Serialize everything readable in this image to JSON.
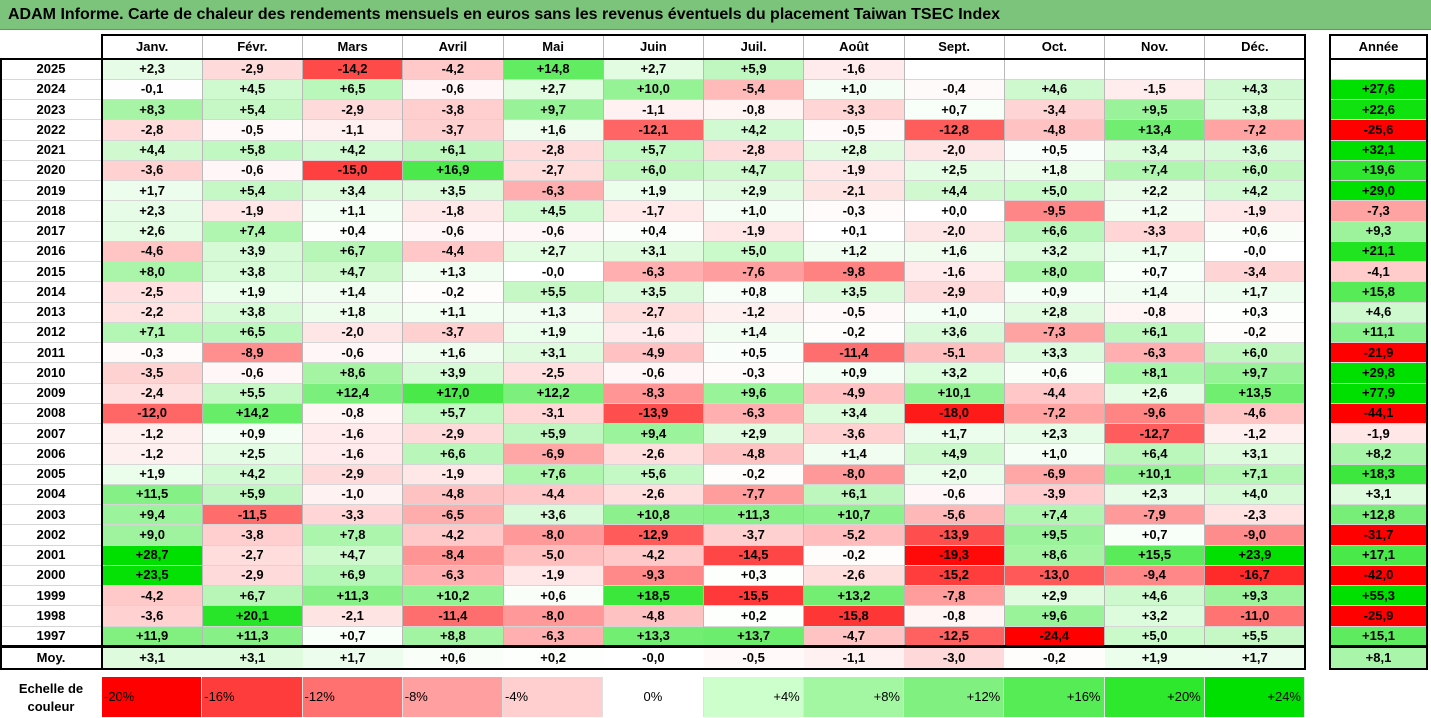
{
  "title": "ADAM Informe. Carte de chaleur des rendements mensuels en euros sans les revenus éventuels du placement Taiwan TSEC Index",
  "chart_data": {
    "type": "heatmap",
    "months": [
      "Janv.",
      "Févr.",
      "Mars",
      "Avril",
      "Mai",
      "Juin",
      "Juil.",
      "Août",
      "Sept.",
      "Oct.",
      "Nov.",
      "Déc."
    ],
    "annual_header": "Année",
    "rows": [
      {
        "year": "2025",
        "values": [
          "+2,3",
          "-2,9",
          "-14,2",
          "-4,2",
          "+14,8",
          "+2,7",
          "+5,9",
          "-1,6",
          "",
          "",
          "",
          ""
        ],
        "annual": ""
      },
      {
        "year": "2024",
        "values": [
          "-0,1",
          "+4,5",
          "+6,5",
          "-0,6",
          "+2,7",
          "+10,0",
          "-5,4",
          "+1,0",
          "-0,4",
          "+4,6",
          "-1,5",
          "+4,3"
        ],
        "annual": "+27,6"
      },
      {
        "year": "2023",
        "values": [
          "+8,3",
          "+5,4",
          "-2,9",
          "-3,8",
          "+9,7",
          "-1,1",
          "-0,8",
          "-3,3",
          "+0,7",
          "-3,4",
          "+9,5",
          "+3,8"
        ],
        "annual": "+22,6"
      },
      {
        "year": "2022",
        "values": [
          "-2,8",
          "-0,5",
          "-1,1",
          "-3,7",
          "+1,6",
          "-12,1",
          "+4,2",
          "-0,5",
          "-12,8",
          "-4,8",
          "+13,4",
          "-7,2"
        ],
        "annual": "-25,6"
      },
      {
        "year": "2021",
        "values": [
          "+4,4",
          "+5,8",
          "+4,2",
          "+6,1",
          "-2,8",
          "+5,7",
          "-2,8",
          "+2,8",
          "-2,0",
          "+0,5",
          "+3,4",
          "+3,6"
        ],
        "annual": "+32,1"
      },
      {
        "year": "2020",
        "values": [
          "-3,6",
          "-0,6",
          "-15,0",
          "+16,9",
          "-2,7",
          "+6,0",
          "+4,7",
          "-1,9",
          "+2,5",
          "+1,8",
          "+7,4",
          "+6,0"
        ],
        "annual": "+19,6"
      },
      {
        "year": "2019",
        "values": [
          "+1,7",
          "+5,4",
          "+3,4",
          "+3,5",
          "-6,3",
          "+1,9",
          "+2,9",
          "-2,1",
          "+4,4",
          "+5,0",
          "+2,2",
          "+4,2"
        ],
        "annual": "+29,0"
      },
      {
        "year": "2018",
        "values": [
          "+2,3",
          "-1,9",
          "+1,1",
          "-1,8",
          "+4,5",
          "-1,7",
          "+1,0",
          "-0,3",
          "+0,0",
          "-9,5",
          "+1,2",
          "-1,9"
        ],
        "annual": "-7,3"
      },
      {
        "year": "2017",
        "values": [
          "+2,6",
          "+7,4",
          "+0,4",
          "-0,6",
          "-0,6",
          "+0,4",
          "-1,9",
          "+0,1",
          "-2,0",
          "+6,6",
          "-3,3",
          "+0,6"
        ],
        "annual": "+9,3"
      },
      {
        "year": "2016",
        "values": [
          "-4,6",
          "+3,9",
          "+6,7",
          "-4,4",
          "+2,7",
          "+3,1",
          "+5,0",
          "+1,2",
          "+1,6",
          "+3,2",
          "+1,7",
          "-0,0"
        ],
        "annual": "+21,1"
      },
      {
        "year": "2015",
        "values": [
          "+8,0",
          "+3,8",
          "+4,7",
          "+1,3",
          "-0,0",
          "-6,3",
          "-7,6",
          "-9,8",
          "-1,6",
          "+8,0",
          "+0,7",
          "-3,4"
        ],
        "annual": "-4,1"
      },
      {
        "year": "2014",
        "values": [
          "-2,5",
          "+1,9",
          "+1,4",
          "-0,2",
          "+5,5",
          "+3,5",
          "+0,8",
          "+3,5",
          "-2,9",
          "+0,9",
          "+1,4",
          "+1,7"
        ],
        "annual": "+15,8"
      },
      {
        "year": "2013",
        "values": [
          "-2,2",
          "+3,8",
          "+1,8",
          "+1,1",
          "+1,3",
          "-2,7",
          "-1,2",
          "-0,5",
          "+1,0",
          "+2,8",
          "-0,8",
          "+0,3"
        ],
        "annual": "+4,6"
      },
      {
        "year": "2012",
        "values": [
          "+7,1",
          "+6,5",
          "-2,0",
          "-3,7",
          "+1,9",
          "-1,6",
          "+1,4",
          "-0,2",
          "+3,6",
          "-7,3",
          "+6,1",
          "-0,2"
        ],
        "annual": "+11,1"
      },
      {
        "year": "2011",
        "values": [
          "-0,3",
          "-8,9",
          "-0,6",
          "+1,6",
          "+3,1",
          "-4,9",
          "+0,5",
          "-11,4",
          "-5,1",
          "+3,3",
          "-6,3",
          "+6,0"
        ],
        "annual": "-21,9"
      },
      {
        "year": "2010",
        "values": [
          "-3,5",
          "-0,6",
          "+8,6",
          "+3,9",
          "-2,5",
          "-0,6",
          "-0,3",
          "+0,9",
          "+3,2",
          "+0,6",
          "+8,1",
          "+9,7"
        ],
        "annual": "+29,8"
      },
      {
        "year": "2009",
        "values": [
          "-2,4",
          "+5,5",
          "+12,4",
          "+17,0",
          "+12,2",
          "-8,3",
          "+9,6",
          "-4,9",
          "+10,1",
          "-4,4",
          "+2,6",
          "+13,5"
        ],
        "annual": "+77,9"
      },
      {
        "year": "2008",
        "values": [
          "-12,0",
          "+14,2",
          "-0,8",
          "+5,7",
          "-3,1",
          "-13,9",
          "-6,3",
          "+3,4",
          "-18,0",
          "-7,2",
          "-9,6",
          "-4,6"
        ],
        "annual": "-44,1"
      },
      {
        "year": "2007",
        "values": [
          "-1,2",
          "+0,9",
          "-1,6",
          "-2,9",
          "+5,9",
          "+9,4",
          "+2,9",
          "-3,6",
          "+1,7",
          "+2,3",
          "-12,7",
          "-1,2"
        ],
        "annual": "-1,9"
      },
      {
        "year": "2006",
        "values": [
          "-1,2",
          "+2,5",
          "-1,6",
          "+6,6",
          "-6,9",
          "-2,6",
          "-4,8",
          "+1,4",
          "+4,9",
          "+1,0",
          "+6,4",
          "+3,1"
        ],
        "annual": "+8,2"
      },
      {
        "year": "2005",
        "values": [
          "+1,9",
          "+4,2",
          "-2,9",
          "-1,9",
          "+7,6",
          "+5,6",
          "-0,2",
          "-8,0",
          "+2,0",
          "-6,9",
          "+10,1",
          "+7,1"
        ],
        "annual": "+18,3"
      },
      {
        "year": "2004",
        "values": [
          "+11,5",
          "+5,9",
          "-1,0",
          "-4,8",
          "-4,4",
          "-2,6",
          "-7,7",
          "+6,1",
          "-0,6",
          "-3,9",
          "+2,3",
          "+4,0"
        ],
        "annual": "+3,1"
      },
      {
        "year": "2003",
        "values": [
          "+9,4",
          "-11,5",
          "-3,3",
          "-6,5",
          "+3,6",
          "+10,8",
          "+11,3",
          "+10,7",
          "-5,6",
          "+7,4",
          "-7,9",
          "-2,3"
        ],
        "annual": "+12,8"
      },
      {
        "year": "2002",
        "values": [
          "+9,0",
          "-3,8",
          "+7,8",
          "-4,2",
          "-8,0",
          "-12,9",
          "-3,7",
          "-5,2",
          "-13,9",
          "+9,5",
          "+0,7",
          "-9,0"
        ],
        "annual": "-31,7"
      },
      {
        "year": "2001",
        "values": [
          "+28,7",
          "-2,7",
          "+4,7",
          "-8,4",
          "-5,0",
          "-4,2",
          "-14,5",
          "-0,2",
          "-19,3",
          "+8,6",
          "+15,5",
          "+23,9"
        ],
        "annual": "+17,1"
      },
      {
        "year": "2000",
        "values": [
          "+23,5",
          "-2,9",
          "+6,9",
          "-6,3",
          "-1,9",
          "-9,3",
          "+0,3",
          "-2,6",
          "-15,2",
          "-13,0",
          "-9,4",
          "-16,7"
        ],
        "annual": "-42,0"
      },
      {
        "year": "1999",
        "values": [
          "-4,2",
          "+6,7",
          "+11,3",
          "+10,2",
          "+0,6",
          "+18,5",
          "-15,5",
          "+13,2",
          "-7,8",
          "+2,9",
          "+4,6",
          "+9,3"
        ],
        "annual": "+55,3"
      },
      {
        "year": "1998",
        "values": [
          "-3,6",
          "+20,1",
          "-2,1",
          "-11,4",
          "-8,0",
          "-4,8",
          "+0,2",
          "-15,8",
          "-0,8",
          "+9,6",
          "+3,2",
          "-11,0"
        ],
        "annual": "-25,9"
      },
      {
        "year": "1997",
        "values": [
          "+11,9",
          "+11,3",
          "+0,7",
          "+8,8",
          "-6,3",
          "+13,3",
          "+13,7",
          "-4,7",
          "-12,5",
          "-24,4",
          "+5,0",
          "+5,5"
        ],
        "annual": "+15,1"
      }
    ],
    "average": {
      "label": "Moy.",
      "values": [
        "+3,1",
        "+3,1",
        "+1,7",
        "+0,6",
        "+0,2",
        "-0,0",
        "-0,5",
        "-1,1",
        "-3,0",
        "-0,2",
        "+1,9",
        "+1,7"
      ],
      "annual": "+8,1"
    },
    "color_scale": {
      "title_line1": "Echelle de",
      "title_line2": "couleur",
      "steps": [
        {
          "label": "-20%",
          "value": -20,
          "color": "#ff0000"
        },
        {
          "label": "-16%",
          "value": -16,
          "color": "#ff3c3c"
        },
        {
          "label": "-12%",
          "value": -12,
          "color": "#ff7070"
        },
        {
          "label": "-8%",
          "value": -8,
          "color": "#ff9f9f"
        },
        {
          "label": "-4%",
          "value": -4,
          "color": "#ffcfcf"
        },
        {
          "label": "0%",
          "value": 0,
          "color": "#ffffff"
        },
        {
          "label": "+4%",
          "value": 4,
          "color": "#ccffcc"
        },
        {
          "label": "+8%",
          "value": 8,
          "color": "#a3f7a3"
        },
        {
          "label": "+12%",
          "value": 12,
          "color": "#80f080"
        },
        {
          "label": "+16%",
          "value": 16,
          "color": "#55ec55"
        },
        {
          "label": "+20%",
          "value": 20,
          "color": "#2ee82e"
        },
        {
          "label": "+24%",
          "value": 24,
          "color": "#00e000"
        }
      ]
    }
  }
}
